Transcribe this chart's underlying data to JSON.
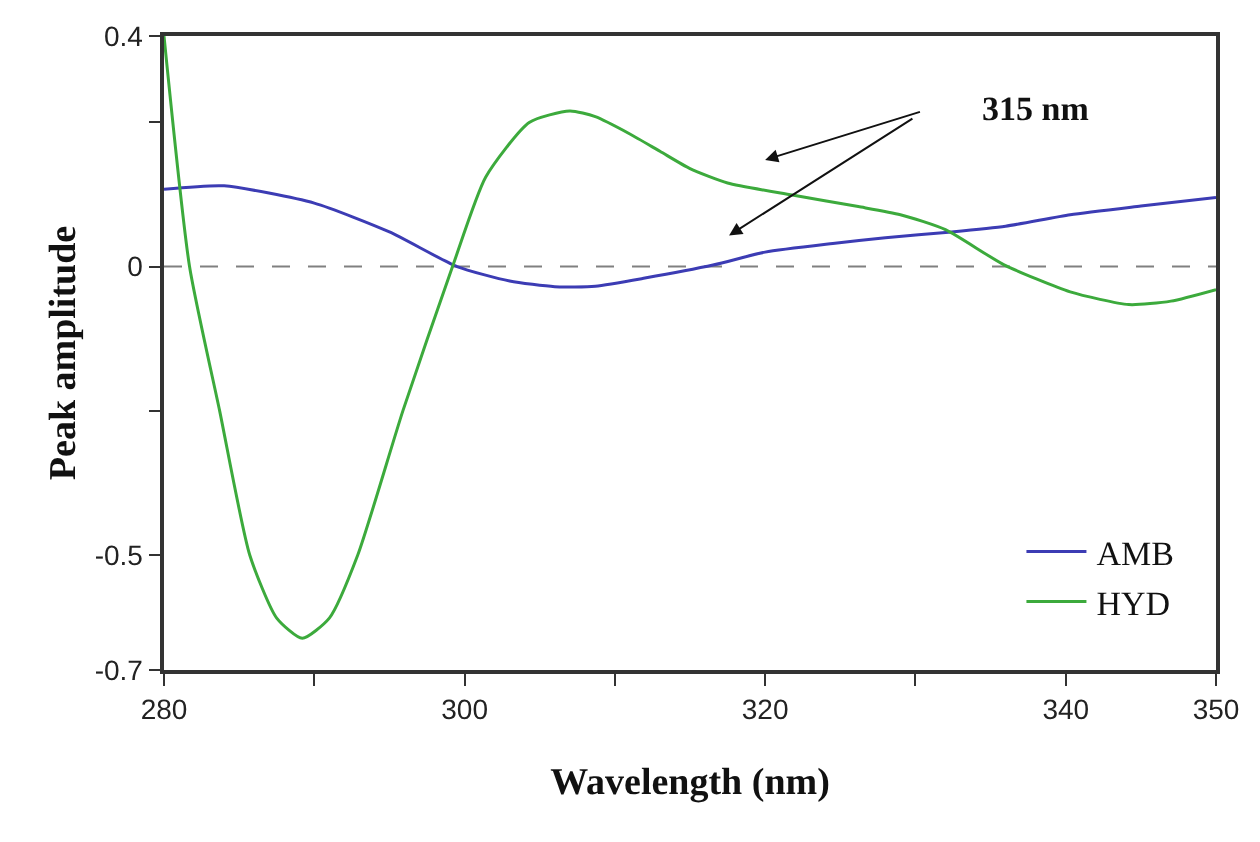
{
  "chart_data": {
    "type": "line",
    "xlabel": "Wavelength (nm)",
    "ylabel": "Peak amplitude",
    "xlim": [
      280,
      350
    ],
    "xticks": [
      280,
      {
        "value": 290,
        "label": null
      },
      300,
      {
        "value": 310,
        "label": null
      },
      320,
      {
        "value": 330,
        "label": null
      },
      340,
      350
    ],
    "ylim": [
      -0.7,
      0.4
    ],
    "yticks": [
      -0.7,
      -0.5,
      {
        "value": -0.25,
        "label": null
      },
      0,
      {
        "value": 0.25,
        "label": null
      },
      0.4
    ],
    "grid": false,
    "legend": "bottom right",
    "marker": "none",
    "line_style": "solid",
    "ref_lines": [
      {
        "axis": "y",
        "value": 0,
        "color": "#808080",
        "line_style": "dashed"
      }
    ],
    "annotations": [
      "315 nm"
    ],
    "series": [
      {
        "name": "AMB",
        "color": "#3c3cb4",
        "x": [
          280,
          284,
          290,
          295,
          299.5,
          303,
          306,
          308.7,
          312,
          316.6,
          320,
          324.5,
          328,
          332.4,
          336,
          340.3,
          345,
          350
        ],
        "values": [
          0.134,
          0.14,
          0.11,
          0.06,
          0.0,
          -0.025,
          -0.035,
          -0.034,
          -0.02,
          0.003,
          0.025,
          0.04,
          0.05,
          0.06,
          0.07,
          0.09,
          0.105,
          0.12
        ]
      },
      {
        "name": "HYD",
        "color": "#3caa3c",
        "x": [
          280,
          281.7,
          283.7,
          285.7,
          287.5,
          289.2,
          291,
          292.9,
          295.9,
          299.2,
          301.4,
          304.3,
          307,
          308.7,
          311,
          313,
          315,
          317.5,
          321.8,
          326.2,
          329,
          332,
          335.9,
          340.3,
          344.2,
          347,
          350
        ],
        "values": [
          0.4,
          0.0,
          -0.25,
          -0.5,
          -0.61,
          -0.645,
          -0.61,
          -0.5,
          -0.25,
          0.0,
          0.155,
          0.25,
          0.27,
          0.26,
          0.23,
          0.2,
          0.17,
          0.145,
          0.124,
          0.104,
          0.09,
          0.064,
          0.003,
          -0.044,
          -0.066,
          -0.06,
          -0.04
        ]
      }
    ]
  }
}
